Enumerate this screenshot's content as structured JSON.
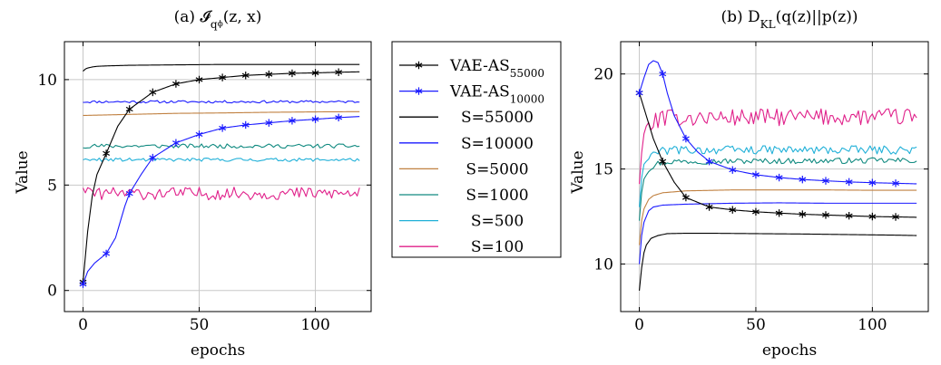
{
  "figure": {
    "legend": {
      "entries": [
        {
          "label": "VAE-AS",
          "sub": "55000",
          "color": "#000000",
          "marker": "star"
        },
        {
          "label": "VAE-AS",
          "sub": "10000",
          "color": "#1a1aff",
          "marker": "star"
        },
        {
          "label": "S=55000",
          "sub": "",
          "color": "#000000",
          "marker": "none"
        },
        {
          "label": "S=10000",
          "sub": "",
          "color": "#1a1aff",
          "marker": "none"
        },
        {
          "label": "S=5000",
          "sub": "",
          "color": "#c08040",
          "marker": "none"
        },
        {
          "label": "S=1000",
          "sub": "",
          "color": "#108a80",
          "marker": "none"
        },
        {
          "label": "S=500",
          "sub": "",
          "color": "#20b0d8",
          "marker": "none"
        },
        {
          "label": "S=100",
          "sub": "",
          "color": "#e0208a",
          "marker": "none"
        }
      ]
    }
  },
  "chart_data": [
    {
      "type": "line",
      "title": "(a) 𝓘",
      "title_sub": "q",
      "title_subsub": "ϕ",
      "title_rest": "(z, x)",
      "xlabel": "epochs",
      "ylabel": "Value",
      "xlim": [
        -8,
        124
      ],
      "ylim": [
        -1,
        11.8
      ],
      "xticks": [
        0,
        50,
        100
      ],
      "yticks": [
        0,
        5,
        10
      ],
      "grid": true,
      "series": [
        {
          "name": "S=55000",
          "color": "#000000",
          "kind": "curve",
          "x": [
            0,
            1,
            2,
            4,
            6,
            10,
            20,
            40,
            60,
            80,
            100,
            119
          ],
          "y": [
            10.4,
            10.5,
            10.55,
            10.6,
            10.63,
            10.65,
            10.68,
            10.7,
            10.72,
            10.72,
            10.72,
            10.72
          ]
        },
        {
          "name": "S=10000",
          "color": "#1a1aff",
          "kind": "flat",
          "level": 8.95,
          "noise": 0.06
        },
        {
          "name": "S=5000",
          "color": "#c08040",
          "kind": "curve",
          "x": [
            0,
            20,
            40,
            60,
            80,
            100,
            119
          ],
          "y": [
            8.3,
            8.35,
            8.4,
            8.42,
            8.45,
            8.47,
            8.48
          ]
        },
        {
          "name": "S=1000",
          "color": "#108a80",
          "kind": "flat",
          "level": 6.85,
          "noise": 0.1
        },
        {
          "name": "S=500",
          "color": "#20b0d8",
          "kind": "flat",
          "level": 6.2,
          "noise": 0.08
        },
        {
          "name": "S=100",
          "color": "#e0208a",
          "kind": "flat",
          "level": 4.6,
          "noise": 0.3
        },
        {
          "name": "VAE-AS55000",
          "color": "#000000",
          "kind": "curve",
          "marker": "star",
          "marker_x": [
            0,
            10,
            20,
            30,
            40,
            50,
            60,
            70,
            80,
            90,
            100,
            110
          ],
          "x": [
            0,
            2,
            4,
            6,
            10,
            15,
            20,
            30,
            40,
            50,
            60,
            70,
            80,
            90,
            100,
            110,
            119
          ],
          "y": [
            0.4,
            2.8,
            4.5,
            5.5,
            6.5,
            7.8,
            8.6,
            9.4,
            9.8,
            10.0,
            10.1,
            10.2,
            10.25,
            10.3,
            10.32,
            10.35,
            10.37
          ]
        },
        {
          "name": "VAE-AS10000",
          "color": "#1a1aff",
          "kind": "curve",
          "marker": "star",
          "marker_x": [
            0,
            10,
            20,
            30,
            40,
            50,
            60,
            70,
            80,
            90,
            100,
            110
          ],
          "x": [
            0,
            2,
            5,
            10,
            14,
            18,
            20,
            25,
            30,
            40,
            50,
            60,
            70,
            80,
            90,
            100,
            110,
            119
          ],
          "y": [
            0.3,
            0.9,
            1.3,
            1.75,
            2.5,
            4.0,
            4.6,
            5.5,
            6.3,
            7.0,
            7.4,
            7.7,
            7.85,
            7.95,
            8.05,
            8.12,
            8.2,
            8.25
          ]
        }
      ]
    },
    {
      "type": "line",
      "title": "(b) D",
      "title_sub": "KL",
      "title_rest": "(q(z)||p(z))",
      "xlabel": "epochs",
      "ylabel": "Value",
      "xlim": [
        -8,
        124
      ],
      "ylim": [
        7.5,
        21.7
      ],
      "xticks": [
        0,
        50,
        100
      ],
      "yticks": [
        10,
        15,
        20
      ],
      "grid": true,
      "series": [
        {
          "name": "S=55000",
          "color": "#000000",
          "kind": "curve",
          "x": [
            0,
            1,
            2,
            3,
            5,
            8,
            12,
            20,
            30,
            50,
            70,
            90,
            110,
            119
          ],
          "y": [
            8.6,
            9.8,
            10.6,
            11.0,
            11.35,
            11.5,
            11.6,
            11.62,
            11.62,
            11.6,
            11.58,
            11.55,
            11.52,
            11.5
          ]
        },
        {
          "name": "S=10000",
          "color": "#1a1aff",
          "kind": "curve",
          "x": [
            0,
            1,
            2,
            4,
            6,
            10,
            20,
            40,
            60,
            80,
            100,
            119
          ],
          "y": [
            10.0,
            11.5,
            12.2,
            12.8,
            13.0,
            13.1,
            13.15,
            13.2,
            13.22,
            13.2,
            13.2,
            13.2
          ]
        },
        {
          "name": "S=5000",
          "color": "#c08040",
          "kind": "curve",
          "x": [
            0,
            1,
            2,
            4,
            6,
            10,
            20,
            40,
            60,
            80,
            100,
            119
          ],
          "y": [
            11.0,
            12.3,
            12.9,
            13.4,
            13.6,
            13.75,
            13.85,
            13.9,
            13.9,
            13.9,
            13.88,
            13.88
          ]
        },
        {
          "name": "S=1000",
          "color": "#108a80",
          "kind": "noisy",
          "x": [
            0,
            1,
            2,
            4,
            8,
            15,
            119
          ],
          "y": [
            12.3,
            13.8,
            14.5,
            15.0,
            15.3,
            15.4,
            15.45
          ],
          "noise": 0.15
        },
        {
          "name": "S=500",
          "color": "#20b0d8",
          "kind": "noisy",
          "x": [
            0,
            1,
            2,
            4,
            8,
            15,
            119
          ],
          "y": [
            13.0,
            14.5,
            15.2,
            15.7,
            15.9,
            16.0,
            16.0
          ],
          "noise": 0.22
        },
        {
          "name": "S=100",
          "color": "#e0208a",
          "kind": "noisy",
          "x": [
            0,
            1,
            2,
            4,
            8,
            15,
            119
          ],
          "y": [
            14.1,
            15.9,
            16.8,
            17.3,
            17.6,
            17.7,
            17.75
          ],
          "noise": 0.45
        },
        {
          "name": "VAE-AS55000",
          "color": "#000000",
          "kind": "curve",
          "marker": "star",
          "marker_x": [
            0,
            10,
            20,
            30,
            40,
            50,
            60,
            70,
            80,
            90,
            100,
            110
          ],
          "x": [
            0,
            3,
            6,
            10,
            15,
            20,
            30,
            40,
            50,
            60,
            70,
            80,
            90,
            100,
            110,
            119
          ],
          "y": [
            19.0,
            17.8,
            16.6,
            15.4,
            14.3,
            13.5,
            13.0,
            12.85,
            12.75,
            12.68,
            12.62,
            12.58,
            12.54,
            12.5,
            12.48,
            12.46
          ]
        },
        {
          "name": "VAE-AS10000",
          "color": "#1a1aff",
          "kind": "curve",
          "marker": "star",
          "marker_x": [
            0,
            10,
            20,
            30,
            40,
            50,
            60,
            70,
            80,
            90,
            100,
            110
          ],
          "x": [
            0,
            2,
            4,
            6,
            8,
            10,
            12,
            15,
            20,
            25,
            30,
            40,
            50,
            60,
            70,
            80,
            90,
            100,
            110,
            119
          ],
          "y": [
            19.0,
            19.8,
            20.5,
            20.7,
            20.6,
            20.0,
            19.0,
            17.8,
            16.6,
            15.9,
            15.4,
            14.95,
            14.7,
            14.55,
            14.45,
            14.38,
            14.32,
            14.28,
            14.25,
            14.22
          ]
        }
      ]
    }
  ]
}
